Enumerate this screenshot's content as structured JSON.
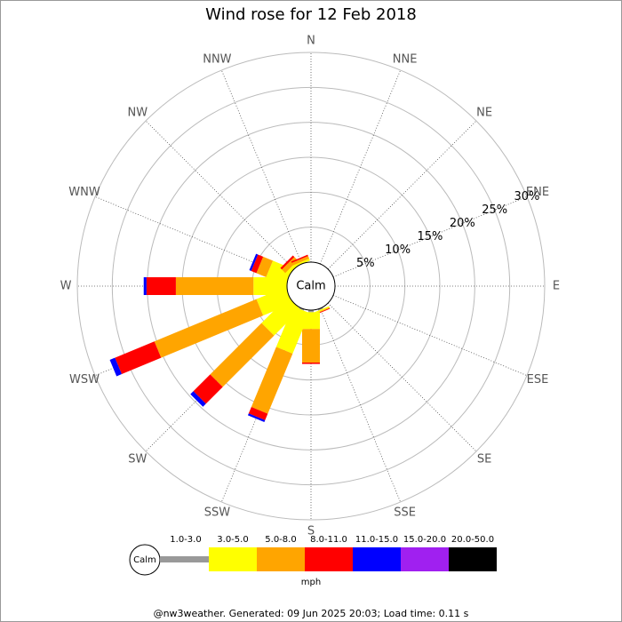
{
  "chart_data": {
    "type": "windrose",
    "title": "Wind rose for 12 Feb 2018",
    "calm_label": "Calm",
    "unit_label": "mph",
    "footer": "@nw3weather. Generated: 09 Jun 2025 20:03; Load time: 0.11 s",
    "categories": [
      "N",
      "NNE",
      "NE",
      "ENE",
      "E",
      "ESE",
      "SE",
      "SSE",
      "S",
      "SSW",
      "SW",
      "WSW",
      "W",
      "WNW",
      "NW",
      "NNW"
    ],
    "rlim": [
      0,
      30
    ],
    "rticks": [
      {
        "value": 5,
        "label": "5%"
      },
      {
        "value": 10,
        "label": "10%"
      },
      {
        "value": 15,
        "label": "15%"
      },
      {
        "value": 20,
        "label": "20%"
      },
      {
        "value": 25,
        "label": "25%"
      },
      {
        "value": 30,
        "label": "30%"
      }
    ],
    "series": [
      {
        "name": "1.0-3.0",
        "color": "#999999",
        "values": [
          0,
          0,
          0,
          0,
          0,
          0,
          0,
          0.2,
          0.3,
          0.2,
          0,
          0,
          0,
          0,
          0,
          0
        ]
      },
      {
        "name": "3.0-5.0",
        "color": "#ffff00",
        "values": [
          0,
          0,
          0,
          0,
          0,
          0,
          0,
          0.2,
          2.4,
          6.3,
          5.3,
          4.5,
          4.8,
          3.0,
          0.5,
          0.3
        ]
      },
      {
        "name": "5.0-8.0",
        "color": "#ffa500",
        "values": [
          0,
          0,
          0,
          0,
          0,
          0,
          0,
          0.1,
          4.8,
          9.3,
          10.4,
          15.8,
          11.1,
          1.5,
          0.7,
          0.4
        ]
      },
      {
        "name": "8.0-11.0",
        "color": "#ff0000",
        "values": [
          0,
          0,
          0,
          0,
          0,
          0,
          0,
          0.1,
          0.2,
          1.0,
          3.4,
          6.1,
          4.2,
          0.8,
          0.3,
          0.2
        ]
      },
      {
        "name": "11.0-15.0",
        "color": "#0000ff",
        "values": [
          0,
          0,
          0,
          0,
          0,
          0,
          0,
          0,
          0,
          0.3,
          0.6,
          0.8,
          0.4,
          0.3,
          0,
          0
        ]
      },
      {
        "name": "15.0-20.0",
        "color": "#a020f0",
        "values": [
          0,
          0,
          0,
          0,
          0,
          0,
          0,
          0,
          0,
          0,
          0,
          0,
          0,
          0,
          0,
          0
        ]
      },
      {
        "name": "20.0-50.0",
        "color": "#000000",
        "values": [
          0,
          0,
          0,
          0,
          0,
          0,
          0,
          0,
          0,
          0,
          0,
          0,
          0,
          0,
          0,
          0
        ]
      }
    ]
  }
}
